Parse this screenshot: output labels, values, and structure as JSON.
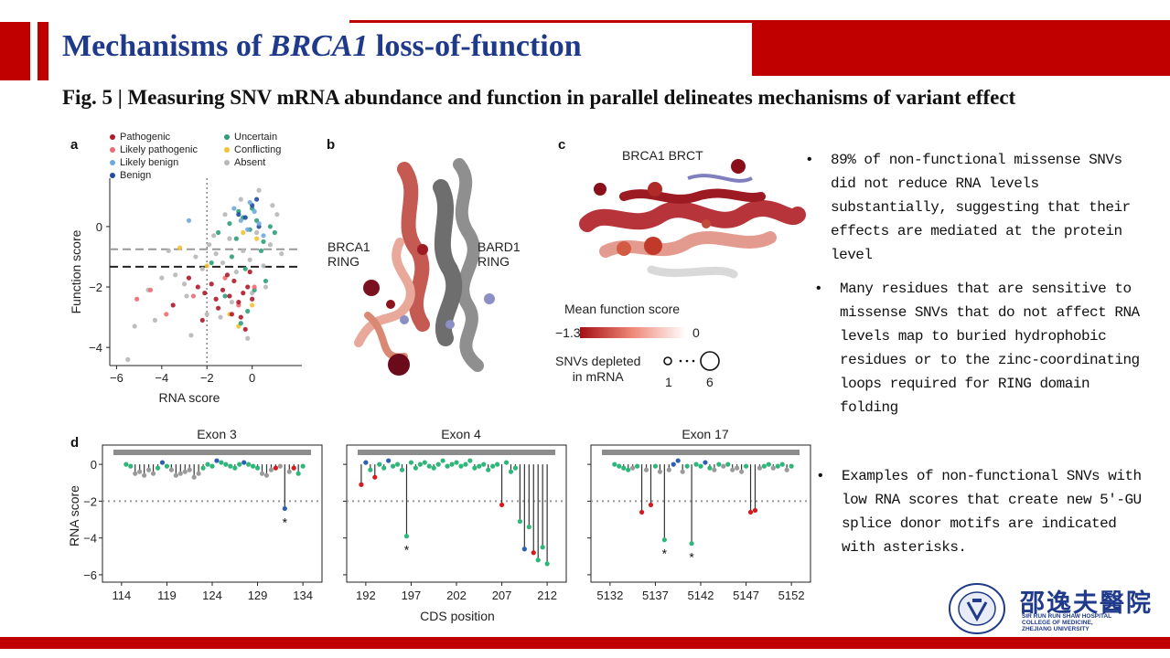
{
  "slide": {
    "title_prefix": "Mechanisms of ",
    "title_gene": "BRCA1",
    "title_suffix": " loss-of-function",
    "figure_caption": "Fig. 5 | Measuring SNV mRNA abundance and function in parallel delineates mechanisms of variant effect",
    "accent_color": "#c00000",
    "title_color": "#1f3a8a"
  },
  "panel_labels": {
    "a": "a",
    "b": "b",
    "c": "c",
    "d": "d"
  },
  "legend": {
    "items": [
      {
        "label": "Pathogenic",
        "color": "#b2182b"
      },
      {
        "label": "Likely pathogenic",
        "color": "#ef6b73"
      },
      {
        "label": "Likely benign",
        "color": "#6fa8dc"
      },
      {
        "label": "Benign",
        "color": "#1f4e9c"
      },
      {
        "label": "Uncertain",
        "color": "#2e9e7a"
      },
      {
        "label": "Conflicting",
        "color": "#f1c232"
      },
      {
        "label": "Absent",
        "color": "#b7b7b7"
      }
    ]
  },
  "chart_data": [
    {
      "type": "scatter",
      "panel": "a",
      "xlabel": "RNA score",
      "ylabel": "Function score",
      "xlim": [
        -6.3,
        2.2
      ],
      "ylim": [
        -4.6,
        1.6
      ],
      "xticks": [
        "−6",
        "−4",
        "−2",
        "0"
      ],
      "yticks": [
        "0",
        "−2",
        "−4"
      ],
      "reference_lines": {
        "vertical_dotted_x": -2,
        "dashed_y": [
          -0.75,
          -1.33
        ]
      },
      "series": [
        {
          "name": "Pathogenic",
          "color": "#b2182b",
          "x": [
            -2.4,
            -2.1,
            -1.8,
            -1.6,
            -1.3,
            -1.0,
            -0.8,
            -0.6,
            -0.4,
            -0.2,
            0,
            -3.5,
            -2.8,
            -0.3,
            -0.9,
            -1.5,
            -0.1,
            -0.5,
            -2.2,
            -1.1
          ],
          "y": [
            -2.0,
            -2.2,
            -1.9,
            -2.4,
            -2.1,
            -2.3,
            -1.8,
            -2.5,
            -2.2,
            -2.0,
            -2.4,
            -2.6,
            -1.7,
            -3.4,
            -2.9,
            -2.7,
            -1.5,
            -3.0,
            -3.1,
            -1.6
          ]
        },
        {
          "name": "Likely pathogenic",
          "color": "#ef6b73",
          "x": [
            -4.5,
            -3.8,
            -2.6,
            -1.2,
            -0.6,
            0.1,
            -5.1
          ],
          "y": [
            -2.1,
            -2.9,
            -2.3,
            -1.7,
            -2.6,
            -2.0,
            -2.4
          ]
        },
        {
          "name": "Likely benign",
          "color": "#6fa8dc",
          "x": [
            -0.5,
            -0.2,
            0.1,
            0.3,
            -0.8,
            0.5,
            -2.8,
            -0.1
          ],
          "y": [
            0.2,
            -0.1,
            0.5,
            0.1,
            0.6,
            -0.3,
            0.2,
            0.8
          ]
        },
        {
          "name": "Benign",
          "color": "#1f4e9c",
          "x": [
            -0.3,
            0.0,
            0.3,
            -0.6,
            0.2
          ],
          "y": [
            0.3,
            0.7,
            0.0,
            0.4,
            0.9
          ]
        },
        {
          "name": "Uncertain",
          "color": "#2e9e7a",
          "x": [
            -1.5,
            -1.0,
            -0.7,
            -0.4,
            -0.1,
            0.2,
            0.5,
            0.8,
            -0.9,
            -0.3,
            0.1,
            0.6,
            -0.6,
            1.0,
            -1.8,
            -0.2,
            0.4,
            -1.2,
            -0.5,
            0.0
          ],
          "y": [
            -0.2,
            0.1,
            -0.4,
            0.3,
            -0.1,
            0.2,
            -0.5,
            0.0,
            -1.0,
            -1.4,
            -2.1,
            -1.8,
            0.5,
            -0.2,
            -1.2,
            -2.8,
            -0.8,
            -2.3,
            -3.2,
            0.6
          ]
        },
        {
          "name": "Conflicting",
          "color": "#f1c232",
          "x": [
            -2.0,
            -0.4,
            0.0,
            -1.0,
            -3.2,
            0.2,
            -0.6
          ],
          "y": [
            -1.3,
            -0.2,
            -2.6,
            -2.9,
            -0.7,
            -0.4,
            -3.3
          ]
        },
        {
          "name": "Absent",
          "color": "#b7b7b7",
          "x": [
            -5.2,
            -4.6,
            -4.0,
            -3.4,
            -2.9,
            -2.5,
            -2.2,
            -1.9,
            -1.6,
            -1.3,
            -1.0,
            -0.7,
            -0.4,
            -0.1,
            0.2,
            0.5,
            0.8,
            1.1,
            -3.7,
            -2.7,
            -1.4,
            -0.9,
            -0.2,
            0.6,
            1.3,
            -5.5,
            -4.3,
            -3.0,
            -1.7,
            -0.5,
            0.3,
            0.9,
            -2.0,
            -1.2,
            0.0
          ],
          "y": [
            -3.3,
            -2.1,
            -1.7,
            -1.6,
            -2.3,
            -1.0,
            -1.4,
            -0.6,
            -0.9,
            -1.2,
            -0.4,
            -1.5,
            -0.8,
            -1.1,
            -0.2,
            -1.3,
            -0.6,
            0.4,
            -0.8,
            -3.6,
            -3.0,
            -2.5,
            -3.7,
            -2.0,
            -0.9,
            -4.4,
            -3.1,
            -1.9,
            -0.3,
            0.9,
            1.2,
            0.7,
            -2.9,
            0.4,
            -2.2
          ]
        }
      ]
    },
    {
      "type": "lollipop",
      "panel": "d",
      "xlabel": "CDS position",
      "ylabel": "RNA score",
      "ylim": [
        -6.4,
        0.8
      ],
      "yticks": [
        "0",
        "−2",
        "−4",
        "−6"
      ],
      "threshold_y": -2,
      "facets": [
        {
          "title": "Exon 3",
          "xlim": [
            112.5,
            135.5
          ],
          "xticks": [
            "114",
            "119",
            "124",
            "129",
            "134"
          ],
          "xtick_values": [
            114,
            119,
            124,
            129,
            134
          ],
          "x": [
            114.5,
            115,
            115.5,
            116,
            116.5,
            117,
            117.5,
            118,
            118.5,
            119,
            119.5,
            120,
            120.5,
            121,
            121.5,
            122,
            122.5,
            123,
            123.5,
            124,
            124.5,
            125,
            125.5,
            126,
            126.5,
            127,
            127.5,
            128,
            128.5,
            129,
            129.5,
            130,
            130.5,
            131,
            131.5,
            132,
            132.5,
            133,
            133.5,
            134
          ],
          "y": [
            0,
            -0.1,
            -0.5,
            -0.4,
            -0.6,
            -0.3,
            -0.5,
            -0.2,
            0.1,
            -0.1,
            -0.3,
            -0.6,
            -0.5,
            -0.4,
            -0.3,
            -0.7,
            -0.5,
            -0.2,
            0,
            -0.1,
            0.2,
            0.1,
            0,
            -0.1,
            -0.2,
            0,
            0.1,
            0,
            -0.1,
            -0.2,
            -0.5,
            -0.6,
            -0.3,
            -0.2,
            -0.1,
            -2.4,
            -0.4,
            -0.2,
            -0.5,
            -0.1
          ],
          "category": [
            "uncertain",
            "uncertain",
            "absent",
            "absent",
            "absent",
            "absent",
            "absent",
            "uncertain",
            "benign",
            "uncertain",
            "absent",
            "absent",
            "absent",
            "absent",
            "absent",
            "absent",
            "absent",
            "uncertain",
            "uncertain",
            "uncertain",
            "benign",
            "uncertain",
            "uncertain",
            "uncertain",
            "uncertain",
            "uncertain",
            "benign",
            "uncertain",
            "uncertain",
            "uncertain",
            "absent",
            "absent",
            "absent",
            "pathogenic",
            "absent",
            "benign",
            "absent",
            "pathogenic",
            "uncertain",
            "uncertain"
          ],
          "asterisks": [
            132
          ]
        },
        {
          "title": "Exon 4",
          "xlim": [
            190.5,
            213.5
          ],
          "xticks": [
            "192",
            "197",
            "202",
            "207",
            "212"
          ],
          "xtick_values": [
            192,
            197,
            202,
            207,
            212
          ],
          "x": [
            191.5,
            192,
            192.5,
            193,
            193.5,
            194,
            194.5,
            195,
            195.5,
            196,
            196.5,
            197,
            197.5,
            198,
            198.5,
            199,
            199.5,
            200,
            200.5,
            201,
            201.5,
            202,
            202.5,
            203,
            203.5,
            204,
            204.5,
            205,
            205.5,
            206,
            206.5,
            207,
            207.5,
            208,
            208.5,
            209,
            209.5,
            210,
            210.5,
            211,
            211.5,
            212
          ],
          "y": [
            -1.1,
            0.1,
            -0.3,
            -0.7,
            0,
            -0.2,
            0.2,
            -0.1,
            0,
            -0.3,
            -3.9,
            0.1,
            -0.2,
            0,
            0.1,
            -0.1,
            -0.2,
            0,
            0.2,
            -0.1,
            0,
            0.1,
            -0.1,
            0,
            0.2,
            -0.2,
            -0.1,
            0,
            -0.3,
            -0.1,
            0,
            -2.2,
            0.1,
            -0.4,
            -0.2,
            -3.1,
            -4.6,
            -3.4,
            -4.8,
            -5.2,
            -4.5,
            -5.4
          ],
          "category": [
            "pathogenic",
            "benign",
            "uncertain",
            "pathogenic",
            "uncertain",
            "uncertain",
            "benign",
            "uncertain",
            "uncertain",
            "uncertain",
            "uncertain",
            "uncertain",
            "uncertain",
            "uncertain",
            "uncertain",
            "uncertain",
            "uncertain",
            "uncertain",
            "uncertain",
            "uncertain",
            "uncertain",
            "uncertain",
            "uncertain",
            "uncertain",
            "uncertain",
            "uncertain",
            "uncertain",
            "uncertain",
            "uncertain",
            "uncertain",
            "uncertain",
            "pathogenic",
            "uncertain",
            "uncertain",
            "uncertain",
            "uncertain",
            "benign",
            "uncertain",
            "pathogenic",
            "uncertain",
            "uncertain",
            "uncertain"
          ],
          "asterisks": [
            196.5
          ]
        },
        {
          "title": "Exon 17",
          "xlim": [
            5130.5,
            5153.5
          ],
          "xticks": [
            "5132",
            "5137",
            "5142",
            "5147",
            "5152"
          ],
          "xtick_values": [
            5132,
            5137,
            5142,
            5147,
            5152
          ],
          "x": [
            5132.5,
            5133,
            5133.5,
            5134,
            5134.5,
            5135,
            5135.5,
            5136,
            5136.5,
            5137,
            5137.5,
            5138,
            5138.5,
            5139,
            5139.5,
            5140,
            5140.5,
            5141,
            5141.5,
            5142,
            5142.5,
            5143,
            5143.5,
            5144,
            5144.5,
            5145,
            5145.5,
            5146,
            5146.5,
            5147,
            5147.5,
            5148,
            5148.5,
            5149,
            5149.5,
            5150,
            5150.5,
            5151,
            5151.5,
            5152
          ],
          "y": [
            0,
            -0.1,
            -0.2,
            -0.3,
            -0.2,
            -0.1,
            -2.6,
            -0.3,
            -2.2,
            -0.1,
            -0.4,
            -4.1,
            -0.3,
            0,
            0.2,
            -0.4,
            -0.1,
            -4.3,
            0,
            -0.1,
            0.1,
            -0.2,
            -0.3,
            0,
            -0.1,
            0,
            -0.3,
            -0.2,
            -0.4,
            -0.1,
            -2.6,
            -2.5,
            -0.2,
            -0.1,
            0,
            -0.2,
            -0.1,
            0,
            -0.3,
            -0.1
          ],
          "category": [
            "uncertain",
            "uncertain",
            "uncertain",
            "uncertain",
            "absent",
            "uncertain",
            "pathogenic",
            "absent",
            "pathogenic",
            "uncertain",
            "absent",
            "uncertain",
            "absent",
            "benign",
            "benign",
            "absent",
            "uncertain",
            "uncertain",
            "uncertain",
            "uncertain",
            "benign",
            "uncertain",
            "absent",
            "uncertain",
            "absent",
            "uncertain",
            "absent",
            "absent",
            "absent",
            "uncertain",
            "pathogenic",
            "pathogenic",
            "absent",
            "uncertain",
            "uncertain",
            "absent",
            "uncertain",
            "uncertain",
            "absent",
            "uncertain"
          ],
          "asterisks": [
            5138,
            5141
          ]
        }
      ]
    }
  ],
  "structures": {
    "b": {
      "label_left_1": "BRCA1",
      "label_left_2": "RING",
      "label_right_1": "BARD1",
      "label_right_2": "RING"
    },
    "c": {
      "label_top": "BRCA1 BRCT"
    }
  },
  "color_scale": {
    "title": "Mean function score",
    "min_label": "−1.3",
    "max_label": "0",
    "color_low": "#a50f15",
    "color_high": "#ffffff",
    "size_title_1": "SNVs depleted",
    "size_title_2": "in mRNA",
    "size_min_label": "1",
    "size_max_label": "6"
  },
  "bullets": [
    "89% of non-functional missense SNVs did not reduce RNA levels substantially, suggesting that their effects are mediated at the protein level",
    "Many residues that are sensitive to missense SNVs that do not affect RNA levels map to buried hydrophobic residues or to the zinc-coordinating loops required for RING domain folding",
    "Examples of non-functional SNVs with low RNA scores that create new 5′-GU splice donor motifs are indicated with asterisks."
  ],
  "logo": {
    "chinese_name": "邵逸夫醫院",
    "english_1": "SIR RUN RUN SHAW HOSPITAL",
    "english_2": "COLLEGE OF MEDICINE,",
    "english_3": "ZHEJIANG UNIVERSITY",
    "ring_text": "浙江大學醫學院"
  }
}
